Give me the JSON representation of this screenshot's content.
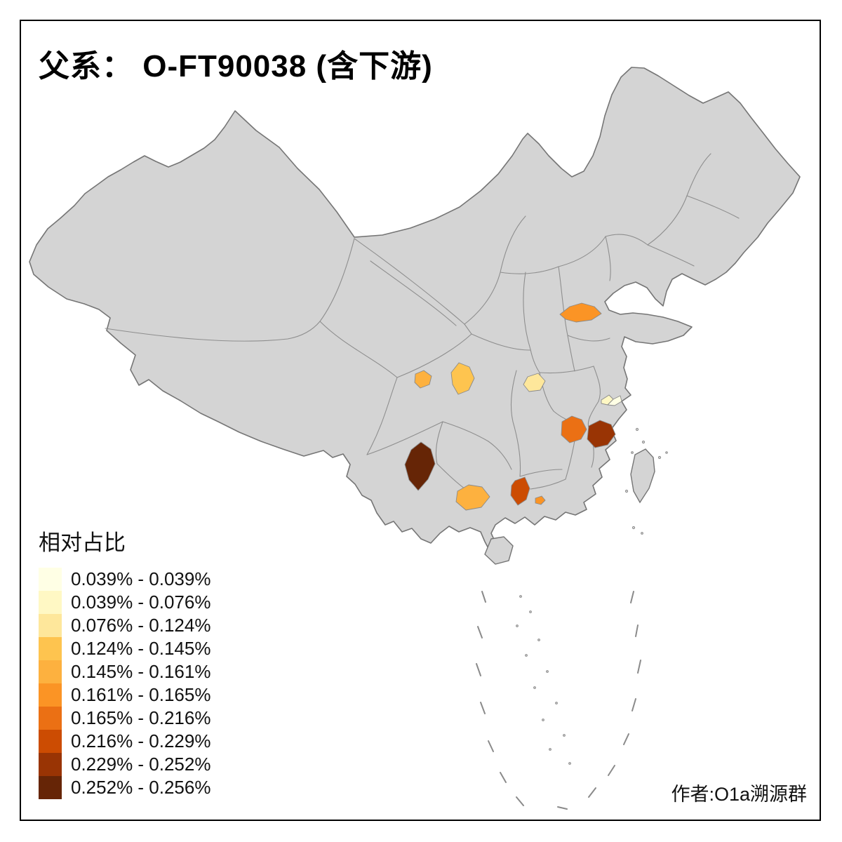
{
  "title": "父系： O-FT90038 (含下游)",
  "author": "作者:O1a溯源群",
  "legend": {
    "title": "相对占比",
    "classes": [
      {
        "label": "0.039% - 0.039%",
        "color": "#FFFFE5"
      },
      {
        "label": "0.039% - 0.076%",
        "color": "#FFF8C4"
      },
      {
        "label": "0.076% - 0.124%",
        "color": "#FEE79B"
      },
      {
        "label": "0.124% - 0.145%",
        "color": "#FEC44F"
      },
      {
        "label": "0.145% - 0.161%",
        "color": "#FDB13F"
      },
      {
        "label": "0.161% - 0.165%",
        "color": "#FB9425"
      },
      {
        "label": "0.165% - 0.216%",
        "color": "#EB7014"
      },
      {
        "label": "0.216% - 0.229%",
        "color": "#CC4C02"
      },
      {
        "label": "0.229% - 0.252%",
        "color": "#993404"
      },
      {
        "label": "0.252% - 0.256%",
        "color": "#662506"
      }
    ]
  },
  "map": {
    "base_fill": "#D4D4D4",
    "outer_border_color": "#757575",
    "inner_border_color": "#8E8E8E",
    "highlighted_regions": [
      {
        "id": "north-china",
        "color": "#FB9425",
        "legend_class": "0.161% - 0.165%"
      },
      {
        "id": "sichuan-east",
        "color": "#FEC44F",
        "legend_class": "0.124% - 0.145%"
      },
      {
        "id": "sichuan-central",
        "color": "#FDB13F",
        "legend_class": "0.145% - 0.161%"
      },
      {
        "id": "hubei-west",
        "color": "#FEE79B",
        "legend_class": "0.076% - 0.124%"
      },
      {
        "id": "shanghai-west",
        "color": "#FFF8C4",
        "legend_class": "0.039% - 0.076%"
      },
      {
        "id": "shanghai-east",
        "color": "#FFFFE5",
        "legend_class": "0.039% - 0.039%"
      },
      {
        "id": "jiangxi-north",
        "color": "#EB7014",
        "legend_class": "0.165% - 0.216%"
      },
      {
        "id": "zhejiang-west",
        "color": "#993404",
        "legend_class": "0.229% - 0.252%"
      },
      {
        "id": "yunnan-central",
        "color": "#662506",
        "legend_class": "0.252% - 0.256%"
      },
      {
        "id": "guangxi-central",
        "color": "#FDB13F",
        "legend_class": "0.145% - 0.161%"
      },
      {
        "id": "guangdong-north",
        "color": "#CC4C02",
        "legend_class": "0.216% - 0.229%"
      },
      {
        "id": "guangdong-east-dot",
        "color": "#FB9425",
        "legend_class": "0.161% - 0.165%"
      }
    ]
  }
}
